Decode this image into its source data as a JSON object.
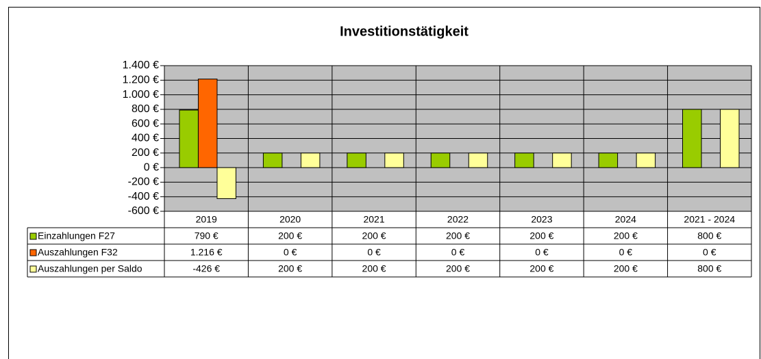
{
  "chart_data": {
    "type": "bar",
    "title": "Investitionstätigkeit",
    "categories": [
      "2019",
      "2020",
      "2021",
      "2022",
      "2023",
      "2024",
      "2021 - 2024"
    ],
    "series": [
      {
        "name": "Einzahlungen F27",
        "color": "#99cc00",
        "values": [
          790,
          200,
          200,
          200,
          200,
          200,
          800
        ],
        "value_labels": [
          "790 €",
          "200 €",
          "200 €",
          "200 €",
          "200 €",
          "200 €",
          "800 €"
        ]
      },
      {
        "name": "Auszahlungen F32",
        "color": "#ff6600",
        "values": [
          1216,
          0,
          0,
          0,
          0,
          0,
          0
        ],
        "value_labels": [
          "1.216 €",
          "0 €",
          "0 €",
          "0 €",
          "0 €",
          "0 €",
          "0 €"
        ]
      },
      {
        "name": "Auszahlungen per Saldo",
        "color": "#ffff99",
        "values": [
          -426,
          200,
          200,
          200,
          200,
          200,
          800
        ],
        "value_labels": [
          "-426 €",
          "200 €",
          "200 €",
          "200 €",
          "200 €",
          "200 €",
          "800 €"
        ]
      }
    ],
    "ylim": [
      -600,
      1400
    ],
    "yticks": [
      {
        "value": -600,
        "label": "-600 €"
      },
      {
        "value": -400,
        "label": "-400 €"
      },
      {
        "value": -200,
        "label": "-200 €"
      },
      {
        "value": 0,
        "label": "0 €"
      },
      {
        "value": 200,
        "label": "200 €"
      },
      {
        "value": 400,
        "label": "400 €"
      },
      {
        "value": 600,
        "label": "600 €"
      },
      {
        "value": 800,
        "label": "800 €"
      },
      {
        "value": 1000,
        "label": "1.000 €"
      },
      {
        "value": 1200,
        "label": "1.200 €"
      },
      {
        "value": 1400,
        "label": "1.400 €"
      }
    ],
    "grid": true
  }
}
